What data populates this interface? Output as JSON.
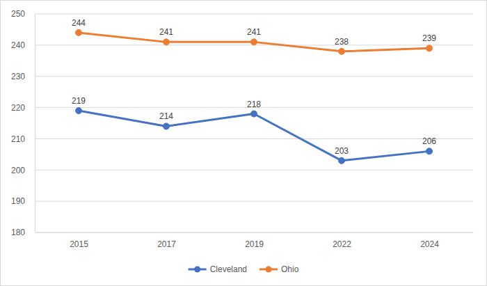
{
  "chart_data": {
    "type": "line",
    "categories": [
      "2015",
      "2017",
      "2019",
      "2022",
      "2024"
    ],
    "series": [
      {
        "name": "Cleveland",
        "color": "#4472c4",
        "values": [
          219,
          214,
          218,
          203,
          206
        ]
      },
      {
        "name": "Ohio",
        "color": "#ed7d31",
        "values": [
          244,
          241,
          241,
          238,
          239
        ]
      }
    ],
    "ylim": [
      180,
      250
    ],
    "yticks": [
      180,
      190,
      200,
      210,
      220,
      230,
      240,
      250
    ],
    "grid": true,
    "legend": "bottom",
    "data_labels": true,
    "marker": "circle",
    "line_style": "solid"
  }
}
